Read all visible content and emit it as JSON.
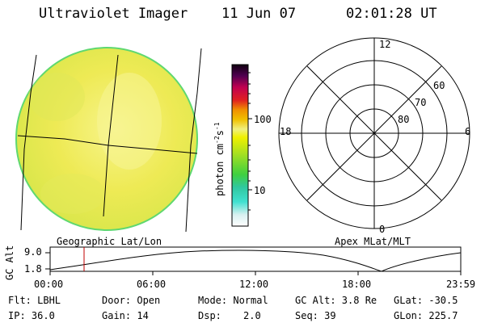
{
  "header": {
    "title": "Ultraviolet Imager",
    "date": "11 Jun 07",
    "time": "02:01:28 UT"
  },
  "colorbar": {
    "unit_label": "photon cm",
    "unit_exp1": "-2",
    "unit_s": "s",
    "unit_exp2": "-1",
    "tick_100": "100",
    "tick_10": "10"
  },
  "polar": {
    "mlt_12": "12",
    "mlt_18": "18",
    "mlt_6": "6",
    "mlt_0": "0",
    "lat_60": "60",
    "lat_70": "70",
    "lat_80": "80"
  },
  "orbit": {
    "left_label": "Geographic Lat/Lon",
    "right_label": "Apex MLat/MLT",
    "yaxis_label": "GC Alt",
    "y_top": "9.0",
    "y_bottom": "1.8",
    "ticks": [
      "00:00",
      "06:00",
      "12:00",
      "18:00",
      "23:59"
    ],
    "marker_time_fraction": 0.084
  },
  "info": {
    "flt": "Flt: LBHL",
    "ip": "IP: 36.0",
    "door": "Door: Open",
    "gain": "Gain: 14",
    "mode": "Mode: Normal",
    "dsp_label": "Dsp:",
    "dsp_value": "2.0",
    "gc_alt": "GC Alt: 3.8 Re",
    "seq": "Seq: 39",
    "glat": "GLat: -30.5",
    "glon": "GLon: 225.7"
  },
  "colors": {
    "disk_fill": "#f0ee58",
    "disk_edge": "#5fd870",
    "marker": "#c00000"
  }
}
